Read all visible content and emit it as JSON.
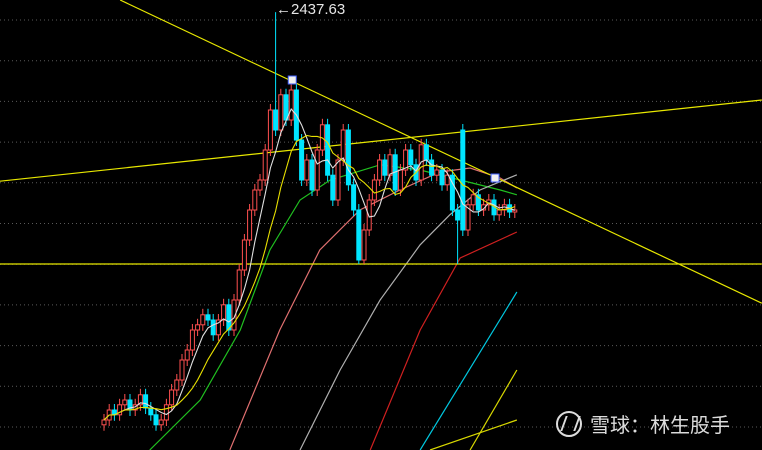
{
  "chart_data": {
    "type": "candlestick",
    "title": "",
    "xlabel": "",
    "ylabel": "",
    "grid": true,
    "colors": {
      "up": "#ff5050",
      "down": "#00e5ff",
      "background": "#000000",
      "grid": "#5a5a5a",
      "trendline": "#e8e800"
    },
    "annotation": {
      "text": "2437.63",
      "arrow": "←",
      "index": 33,
      "price": 2437.63
    },
    "open": [
      1406,
      1418,
      1443,
      1431,
      1456,
      1468,
      1443,
      1456,
      1481,
      1448,
      1431,
      1406,
      1418,
      1456,
      1493,
      1518,
      1568,
      1593,
      1643,
      1656,
      1681,
      1668,
      1631,
      1668,
      1706,
      1643,
      1718,
      1793,
      1868,
      1943,
      1993,
      2018,
      2093,
      2193,
      2143,
      2231,
      2168,
      2243,
      2118,
      2018,
      2068,
      1993,
      2093,
      2156,
      2030,
      1968,
      2068,
      2143,
      2006,
      1943,
      1818,
      1893,
      1968,
      2018,
      2068,
      2030,
      2081,
      1993,
      2043,
      2093,
      2056,
      2018,
      2106,
      2068,
      2030,
      2043,
      2006,
      2030,
      1943,
      2143,
      1893,
      1956,
      1981,
      1943,
      1956,
      1968,
      1931,
      1943,
      1956,
      1938
    ],
    "high": [
      1433,
      1458,
      1458,
      1471,
      1483,
      1483,
      1471,
      1496,
      1496,
      1463,
      1446,
      1433,
      1471,
      1508,
      1533,
      1583,
      1608,
      1658,
      1671,
      1696,
      1696,
      1683,
      1683,
      1721,
      1721,
      1733,
      1808,
      1883,
      1958,
      2008,
      2033,
      2108,
      2208,
      2437.63,
      2246,
      2246,
      2258,
      2258,
      2133,
      2083,
      2083,
      2108,
      2171,
      2171,
      2045,
      2083,
      2158,
      2158,
      2021,
      1958,
      1908,
      1983,
      2033,
      2083,
      2083,
      2096,
      2096,
      2058,
      2108,
      2108,
      2071,
      2121,
      2121,
      2083,
      2058,
      2058,
      2045,
      2045,
      1958,
      2158,
      1971,
      1996,
      1996,
      1971,
      1983,
      1983,
      1958,
      1971,
      1971,
      1958
    ],
    "low": [
      1391,
      1403,
      1416,
      1416,
      1441,
      1428,
      1428,
      1441,
      1433,
      1416,
      1391,
      1391,
      1403,
      1441,
      1478,
      1503,
      1553,
      1578,
      1628,
      1641,
      1653,
      1616,
      1616,
      1653,
      1628,
      1628,
      1703,
      1778,
      1853,
      1928,
      1978,
      2003,
      2078,
      2128,
      2128,
      2153,
      2153,
      2103,
      2003,
      2003,
      1978,
      1978,
      2078,
      2015,
      1953,
      1953,
      2053,
      1991,
      1928,
      1808,
      1808,
      1878,
      1953,
      2003,
      2015,
      2015,
      1978,
      1978,
      2028,
      2041,
      2003,
      2003,
      2053,
      2015,
      2015,
      1991,
      1991,
      1928,
      1808,
      1878,
      1878,
      1941,
      1928,
      1928,
      1941,
      1916,
      1916,
      1928,
      1923,
      1923
    ],
    "close": [
      1418,
      1443,
      1431,
      1456,
      1468,
      1443,
      1456,
      1481,
      1448,
      1431,
      1406,
      1418,
      1456,
      1493,
      1518,
      1568,
      1593,
      1643,
      1656,
      1681,
      1668,
      1631,
      1668,
      1706,
      1643,
      1718,
      1793,
      1868,
      1943,
      1993,
      2018,
      2093,
      2193,
      2143,
      2231,
      2168,
      2243,
      2118,
      2018,
      2068,
      1993,
      2093,
      2156,
      2030,
      1968,
      2068,
      2143,
      2006,
      1943,
      1818,
      1893,
      1968,
      2018,
      2068,
      2030,
      2081,
      1993,
      2043,
      2093,
      2056,
      2018,
      2106,
      2068,
      2030,
      2043,
      2006,
      2030,
      1943,
      1918,
      1893,
      1956,
      1981,
      1943,
      1956,
      1968,
      1931,
      1943,
      1956,
      1938,
      1943
    ],
    "moving_averages": [
      {
        "period": 5,
        "color": "#e0e0e0"
      },
      {
        "period": 10,
        "color": "#e8e000"
      }
    ],
    "long_averages": [
      {
        "color": "#20c020",
        "points": [
          [
            8.8,
            1343
          ],
          [
            18.5,
            1468
          ],
          [
            26.2,
            1643
          ],
          [
            31.9,
            1843
          ],
          [
            37.7,
            1968
          ],
          [
            43.5,
            2018
          ],
          [
            53.1,
            2056
          ],
          [
            60.8,
            2043
          ],
          [
            68.5,
            2018
          ],
          [
            76.2,
            1993
          ],
          [
            79.4,
            1981
          ]
        ]
      },
      {
        "color": "#e07070",
        "points": [
          [
            24.2,
            1343
          ],
          [
            33.8,
            1643
          ],
          [
            41.5,
            1843
          ],
          [
            49.2,
            1943
          ],
          [
            56.9,
            1993
          ],
          [
            64.6,
            2038
          ],
          [
            70.4,
            2048
          ],
          [
            76.2,
            2023
          ],
          [
            79.4,
            1998
          ]
        ]
      },
      {
        "color": "#b0b0b0",
        "points": [
          [
            37.7,
            1343
          ],
          [
            45.4,
            1543
          ],
          [
            53.1,
            1718
          ],
          [
            60.8,
            1856
          ],
          [
            66.5,
            1931
          ],
          [
            72.3,
            1993
          ],
          [
            79.4,
            2031
          ]
        ]
      },
      {
        "color": "#d02020",
        "points": [
          [
            51.2,
            1343
          ],
          [
            60.8,
            1643
          ],
          [
            68.5,
            1823
          ],
          [
            79.4,
            1888
          ]
        ]
      },
      {
        "color": "#00c8e0",
        "points": [
          [
            60.8,
            1343
          ],
          [
            79.4,
            1738
          ]
        ]
      },
      {
        "color": "#d8d800",
        "points": [
          [
            70.4,
            1343
          ],
          [
            79.4,
            1543
          ]
        ]
      },
      {
        "color": "#d8d800",
        "points": [
          [
            62.7,
            1343
          ],
          [
            79.4,
            1418
          ]
        ]
      }
    ],
    "trendlines": [
      {
        "from": [
          3.1,
          2468
        ],
        "to": [
          126.5,
          1710
        ]
      },
      {
        "from": [
          -20,
          2015
        ],
        "to": [
          126.5,
          2218
        ]
      },
      {
        "from": [
          -20,
          1808
        ],
        "to": [
          126.5,
          1808
        ]
      }
    ],
    "markers": [
      [
        36.2,
        2268
      ],
      [
        75.2,
        2023
      ]
    ]
  },
  "watermark": {
    "brand": "雪球",
    "separator": "：",
    "author": "林生股手"
  }
}
